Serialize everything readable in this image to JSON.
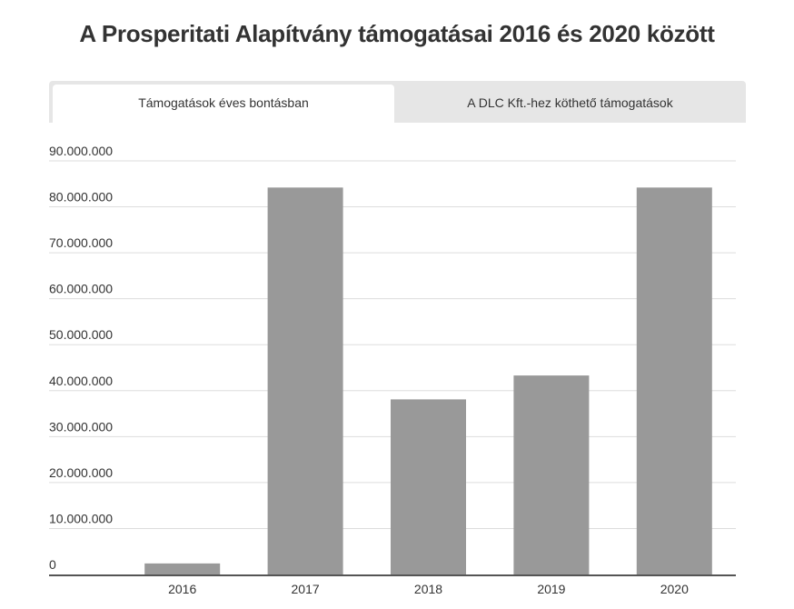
{
  "title": "A Prosperitati Alapítvány támogatásai 2016 és 2020 között",
  "tabs": [
    {
      "label": "Támogatások éves bontásban",
      "active": true
    },
    {
      "label": "A DLC Kft.-hez köthető támogatások",
      "active": false
    }
  ],
  "chart_data": {
    "type": "bar",
    "title": "A Prosperitati Alapítvány támogatásai 2016 és 2020 között",
    "categories": [
      "2016",
      "2017",
      "2018",
      "2019",
      "2020"
    ],
    "values": [
      2400000,
      84200000,
      38100000,
      43300000,
      84200000
    ],
    "xlabel": "",
    "ylabel": "",
    "ylim": [
      0,
      90000000
    ],
    "yticks": [
      0,
      10000000,
      20000000,
      30000000,
      40000000,
      50000000,
      60000000,
      70000000,
      80000000,
      90000000
    ],
    "ytick_labels": [
      "0",
      "10.000.000",
      "20.000.000",
      "30.000.000",
      "40.000.000",
      "50.000.000",
      "60.000.000",
      "70.000.000",
      "80.000.000",
      "90.000.000"
    ],
    "bar_color": "#999999",
    "grid": true,
    "legend": "none"
  }
}
